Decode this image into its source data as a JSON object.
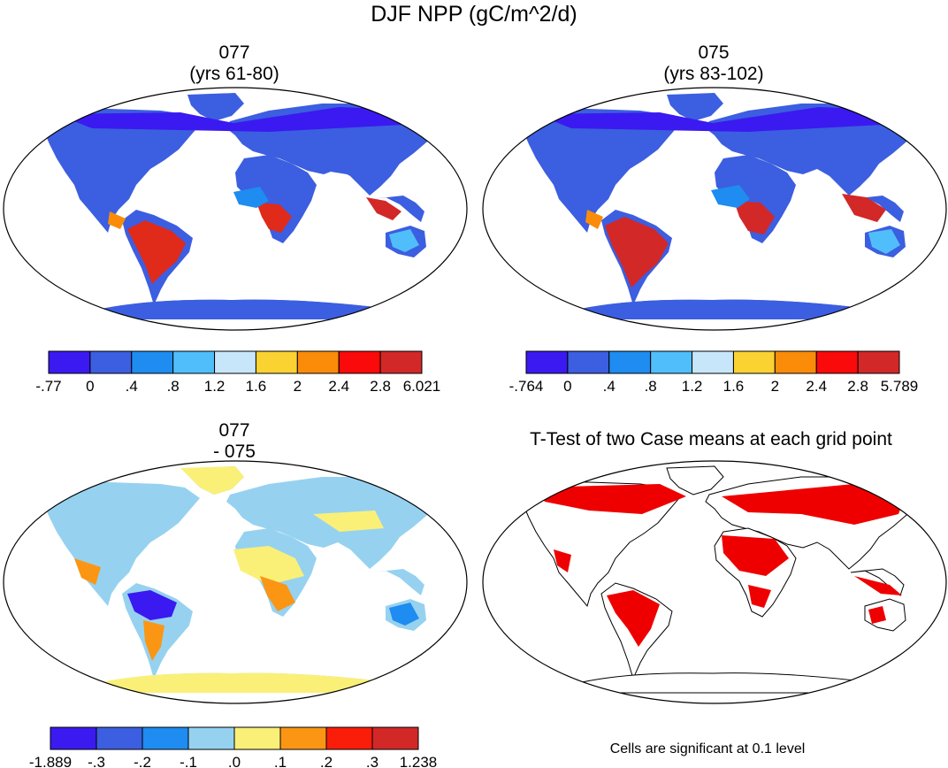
{
  "title": "DJF NPP (gC/m^2/d)",
  "panels": [
    {
      "title_line1": "077",
      "title_line2": "(yrs 61-80)"
    },
    {
      "title_line1": "075",
      "title_line2": "(yrs 83-102)"
    },
    {
      "title_line1": "077",
      "title_line2": "- 075"
    },
    {
      "title_line1": "T-Test of two Case means at each grid point",
      "title_line2": ""
    }
  ],
  "colorbars": [
    {
      "labels": [
        "-.77",
        "0",
        ".4",
        ".8",
        "1.2",
        "1.6",
        "2",
        "2.4",
        "2.8",
        "6.021"
      ],
      "colors": [
        "#3a1af0",
        "#3c5ee0",
        "#1e8cf0",
        "#50befa",
        "#c8e6fa",
        "#fad232",
        "#fa8c0a",
        "#fa0a0a",
        "#d22828"
      ]
    },
    {
      "labels": [
        "-.764",
        "0",
        ".4",
        ".8",
        "1.2",
        "1.6",
        "2",
        "2.4",
        "2.8",
        "5.789"
      ],
      "colors": [
        "#3a1af0",
        "#3c5ee0",
        "#1e8cf0",
        "#50befa",
        "#c8e6fa",
        "#fad232",
        "#fa8c0a",
        "#fa0a0a",
        "#d22828"
      ]
    },
    {
      "labels": [
        "-1.889",
        "-.3",
        "-.2",
        "-.1",
        ".0",
        ".1",
        ".2",
        ".3",
        "1.238"
      ],
      "colors": [
        "#3a1af0",
        "#3c5ee0",
        "#1e8cf0",
        "#96d2f0",
        "#faf078",
        "#fa9614",
        "#fa1e0a",
        "#d22828"
      ]
    }
  ],
  "significance_note": "Cells are significant at 0.1 level",
  "colors": {
    "ocean": "#ffffff",
    "significant": "#ee0000",
    "frame": "#000000"
  }
}
